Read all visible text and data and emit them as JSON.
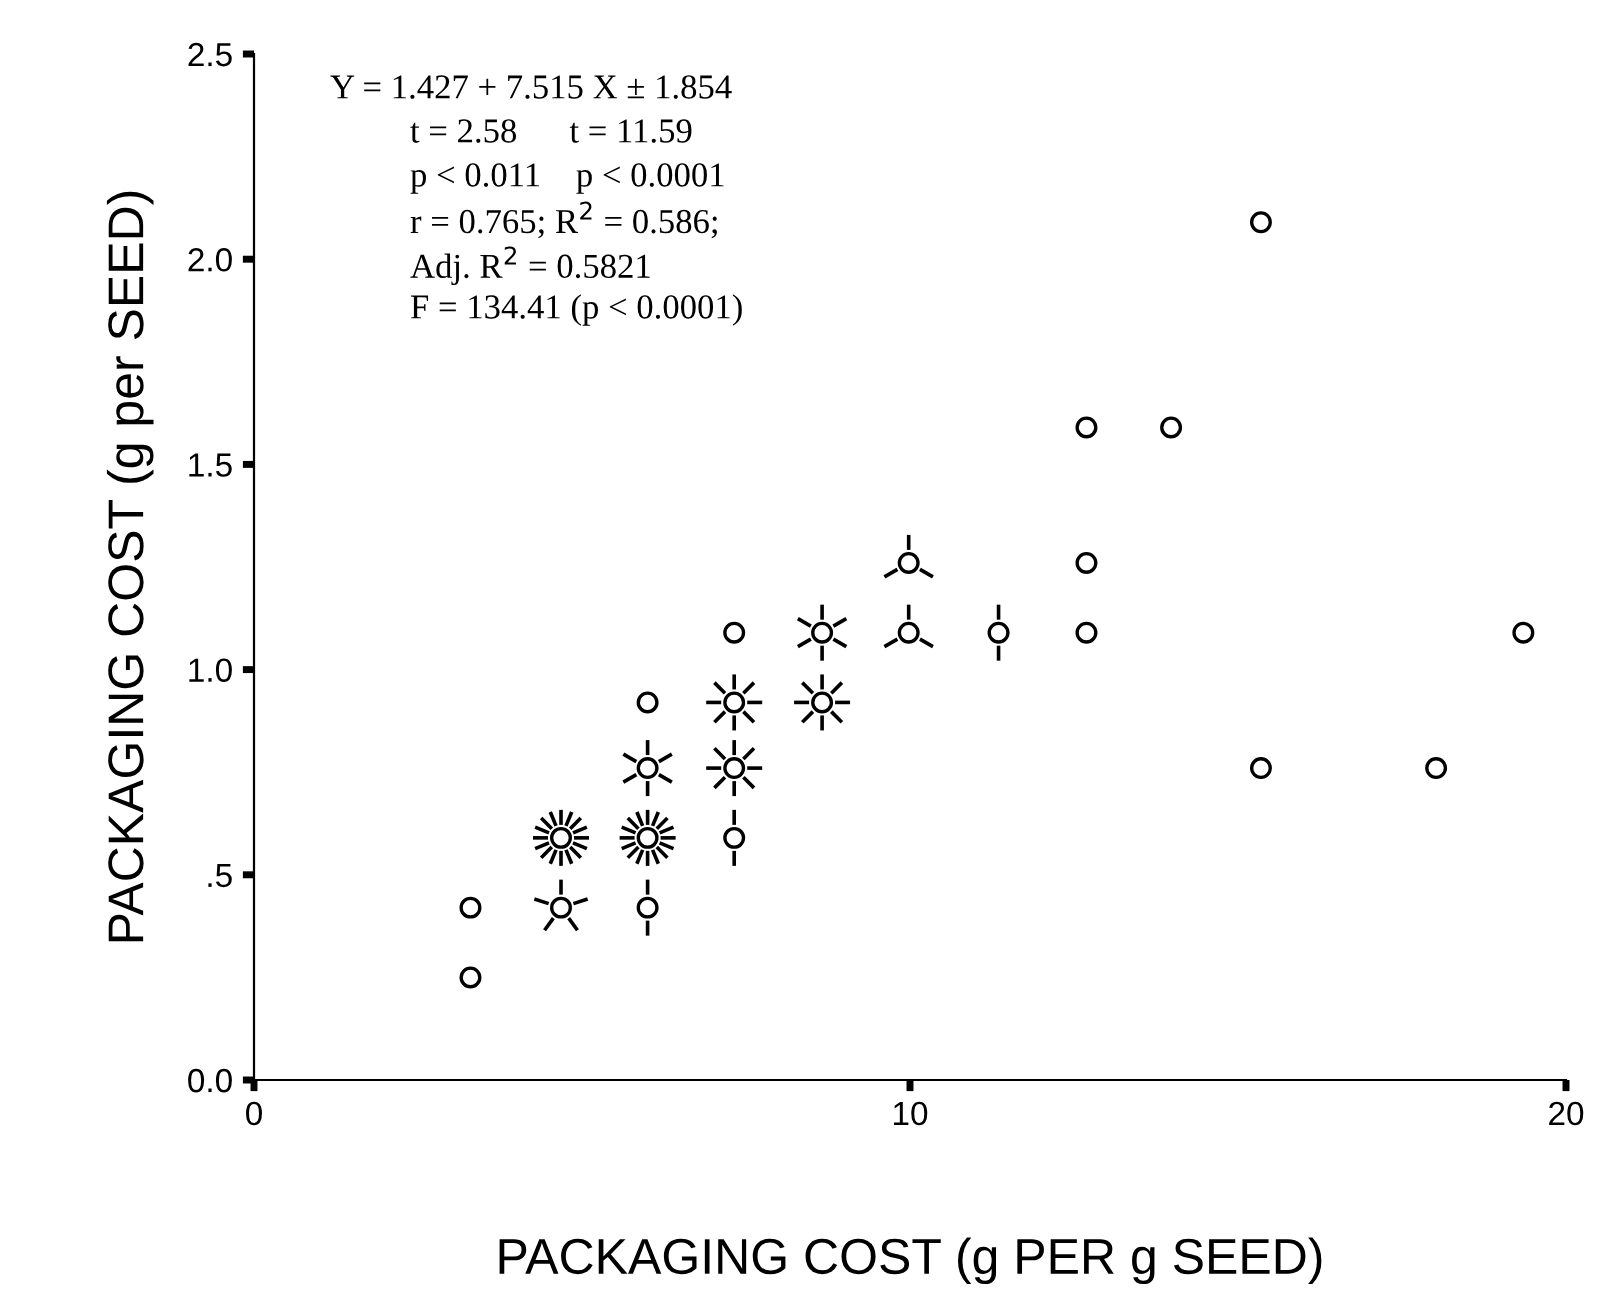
{
  "chart_data": {
    "type": "scatter",
    "xlabel": "PACKAGING COST (g PER g SEED)",
    "ylabel": "PACKAGING COST (g per SEED)",
    "annotations": [
      "Y = 1.427 + 7.515 X ± 1.854",
      "t = 2.58      t = 11.59",
      "p < 0.011    p < 0.0001",
      "r = 0.765; R$^{2}$ = 0.586;",
      "Adj. R$^{2}$ = 0.5821",
      "F = 134.41 (p < 0.0001)"
    ],
    "x": [
      3.3,
      3.3,
      4.68,
      4.68,
      6.0,
      6.0,
      6.0,
      6.0,
      7.32,
      7.32,
      7.32,
      7.32,
      8.66,
      8.66,
      9.98,
      9.98,
      11.35,
      12.69,
      12.69,
      12.69,
      13.98,
      15.35,
      15.35,
      18.02,
      19.35
    ],
    "values": [
      0.25,
      0.42,
      0.42,
      0.59,
      0.42,
      0.59,
      0.76,
      0.92,
      0.59,
      0.76,
      0.92,
      1.09,
      0.92,
      1.09,
      1.09,
      1.26,
      1.09,
      1.09,
      1.26,
      1.59,
      1.59,
      2.09,
      0.76,
      0.76,
      1.09
    ],
    "color": "#000000",
    "marker": "circle",
    "grid": false,
    "xlim": [
      0,
      20
    ],
    "xticks": [
      0,
      10,
      20
    ],
    "ylim": [
      0,
      2.5
    ],
    "yticks": [
      {
        "value": 0,
        "label": "0.0"
      },
      {
        "value": 0.5,
        "label": ".5"
      },
      {
        "value": 1.0,
        "label": "1.0"
      },
      1.5,
      {
        "value": 2.0,
        "label": "2.0"
      },
      2.5
    ]
  }
}
